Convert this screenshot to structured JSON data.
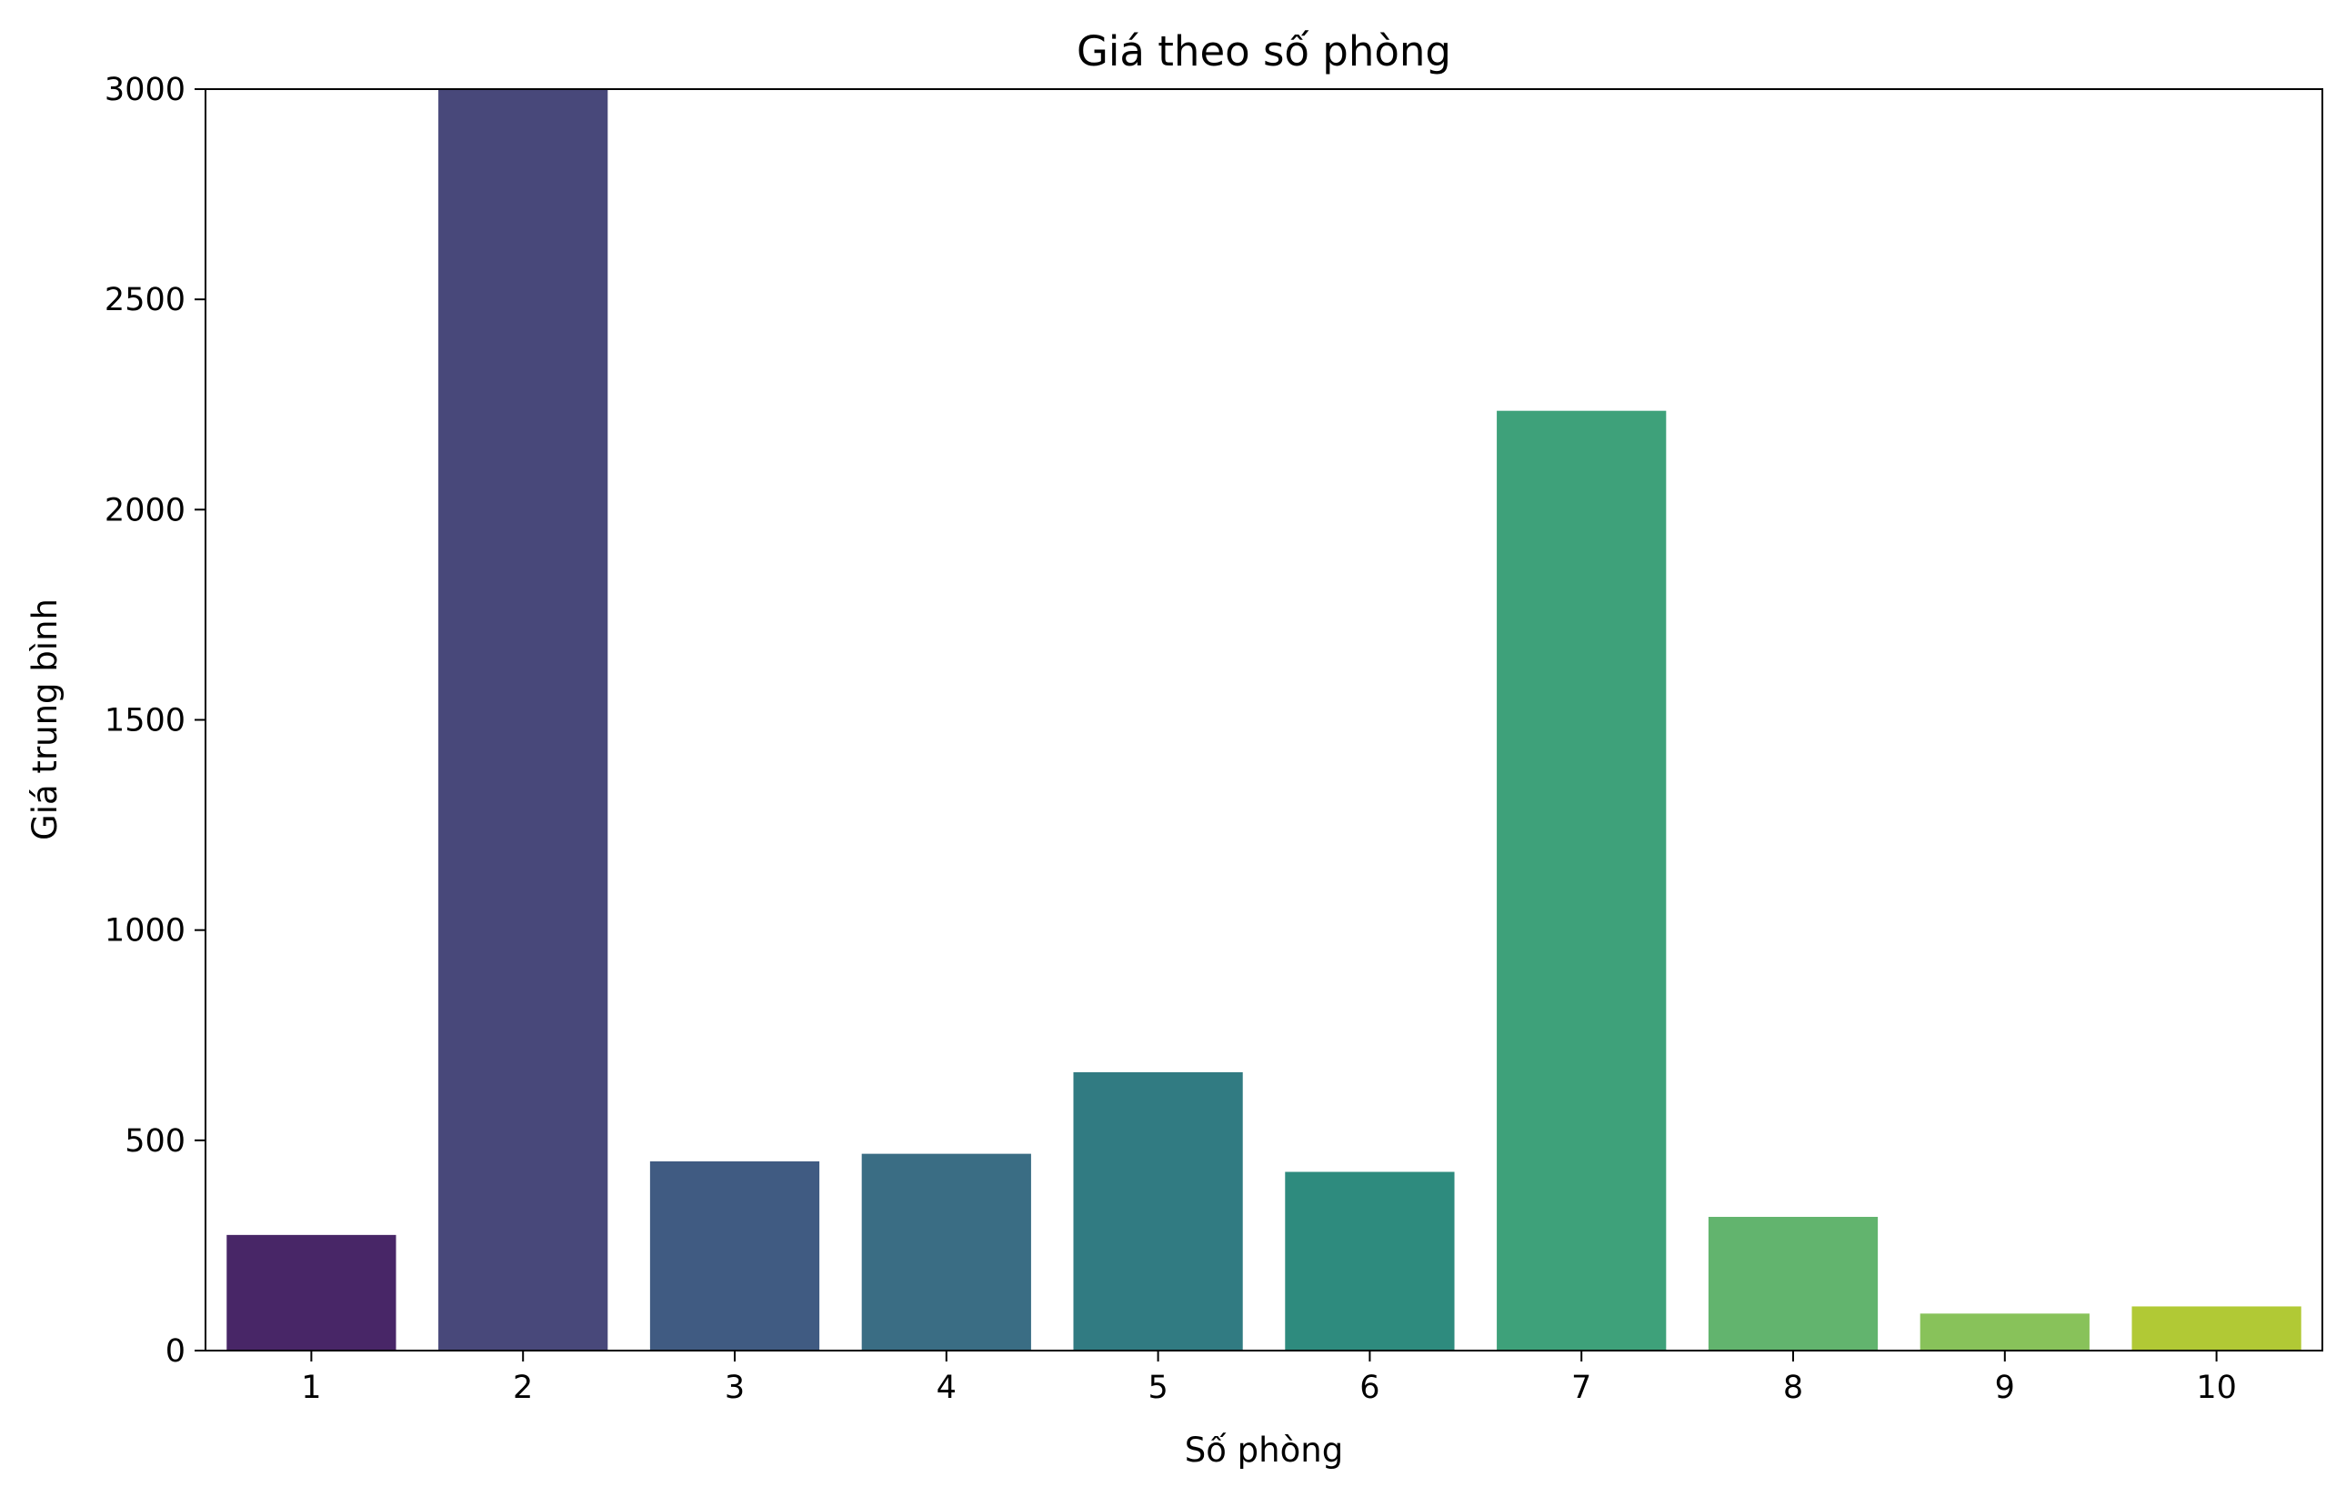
{
  "chart_data": {
    "type": "bar",
    "title": "Giá theo số phòng",
    "xlabel": "Số phòng",
    "ylabel": "Giá trung bình",
    "categories": [
      "1",
      "2",
      "3",
      "4",
      "5",
      "6",
      "7",
      "8",
      "9",
      "10"
    ],
    "values": [
      275,
      3000,
      450,
      468,
      662,
      425,
      2235,
      318,
      88,
      105
    ],
    "colors": [
      "#482667",
      "#48487a",
      "#405b82",
      "#3a6d84",
      "#317b82",
      "#2e8b7e",
      "#3ea17a",
      "#62b46e",
      "#88c25a",
      "#b1c935"
    ],
    "ylim": [
      0,
      3000
    ],
    "yticks": [
      0,
      500,
      1000,
      1500,
      2000,
      2500,
      3000
    ],
    "grid": false,
    "legend": false
  }
}
